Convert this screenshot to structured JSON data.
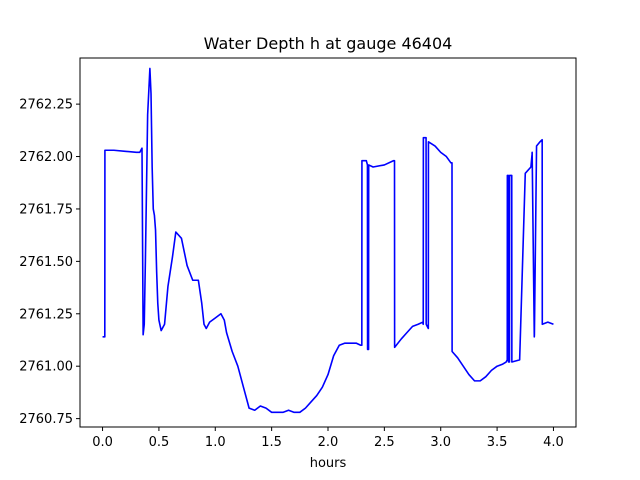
{
  "chart_data": {
    "type": "line",
    "title": "Water Depth h at gauge 46404",
    "xlabel": "hours",
    "ylabel": "",
    "xlim": [
      -0.2,
      4.2
    ],
    "ylim": [
      2760.71,
      2762.47
    ],
    "grid": false,
    "xticks": [
      0.0,
      0.5,
      1.0,
      1.5,
      2.0,
      2.5,
      3.0,
      3.5,
      4.0
    ],
    "xtick_labels": [
      "0.0",
      "0.5",
      "1.0",
      "1.5",
      "2.0",
      "2.5",
      "3.0",
      "3.5",
      "4.0"
    ],
    "yticks": [
      2760.75,
      2761.0,
      2761.25,
      2761.5,
      2761.75,
      2762.0,
      2762.25
    ],
    "ytick_labels": [
      "2760.75",
      "2761.00",
      "2761.25",
      "2761.50",
      "2761.75",
      "2762.00",
      "2762.25"
    ],
    "series": [
      {
        "color": "#0000ff",
        "x": [
          0.0,
          0.02,
          0.021,
          0.1,
          0.2,
          0.3,
          0.33,
          0.35,
          0.36,
          0.37,
          0.38,
          0.4,
          0.42,
          0.43,
          0.44,
          0.45,
          0.46,
          0.47,
          0.48,
          0.49,
          0.5,
          0.52,
          0.55,
          0.58,
          0.6,
          0.62,
          0.65,
          0.7,
          0.75,
          0.8,
          0.85,
          0.88,
          0.9,
          0.92,
          0.95,
          1.0,
          1.05,
          1.08,
          1.1,
          1.15,
          1.2,
          1.25,
          1.3,
          1.35,
          1.4,
          1.45,
          1.5,
          1.55,
          1.6,
          1.65,
          1.7,
          1.75,
          1.8,
          1.85,
          1.9,
          1.95,
          2.0,
          2.05,
          2.1,
          2.15,
          2.2,
          2.25,
          2.29,
          2.3,
          2.301,
          2.34,
          2.35,
          2.351,
          2.36,
          2.361,
          2.4,
          2.5,
          2.58,
          2.59,
          2.591,
          2.65,
          2.7,
          2.75,
          2.8,
          2.84,
          2.845,
          2.846,
          2.87,
          2.871,
          2.88,
          2.89,
          2.891,
          2.95,
          3.0,
          3.05,
          3.09,
          3.1,
          3.101,
          3.15,
          3.2,
          3.25,
          3.3,
          3.35,
          3.4,
          3.45,
          3.5,
          3.55,
          3.58,
          3.59,
          3.591,
          3.6,
          3.601,
          3.61,
          3.611,
          3.63,
          3.631,
          3.7,
          3.75,
          3.8,
          3.81,
          3.811,
          3.83,
          3.831,
          3.85,
          3.88,
          3.9,
          3.901,
          3.95,
          4.0
        ],
        "y": [
          2761.14,
          2761.14,
          2762.03,
          2762.03,
          2762.025,
          2762.02,
          2762.02,
          2762.04,
          2761.15,
          2761.2,
          2761.5,
          2762.2,
          2762.42,
          2762.3,
          2761.95,
          2761.75,
          2761.72,
          2761.65,
          2761.45,
          2761.3,
          2761.22,
          2761.17,
          2761.2,
          2761.38,
          2761.45,
          2761.52,
          2761.64,
          2761.61,
          2761.48,
          2761.41,
          2761.41,
          2761.3,
          2761.2,
          2761.18,
          2761.21,
          2761.23,
          2761.25,
          2761.22,
          2761.16,
          2761.07,
          2761.0,
          2760.9,
          2760.8,
          2760.79,
          2760.81,
          2760.8,
          2760.78,
          2760.78,
          2760.78,
          2760.79,
          2760.78,
          2760.78,
          2760.8,
          2760.83,
          2760.86,
          2760.9,
          2760.96,
          2761.05,
          2761.1,
          2761.11,
          2761.11,
          2761.11,
          2761.1,
          2761.1,
          2761.98,
          2761.98,
          2761.96,
          2761.08,
          2761.08,
          2761.96,
          2761.95,
          2761.96,
          2761.98,
          2761.98,
          2761.09,
          2761.13,
          2761.16,
          2761.19,
          2761.2,
          2761.21,
          2761.2,
          2762.09,
          2762.09,
          2761.2,
          2761.19,
          2761.18,
          2762.07,
          2762.05,
          2762.02,
          2762.0,
          2761.97,
          2761.97,
          2761.07,
          2761.04,
          2761.0,
          2760.96,
          2760.93,
          2760.93,
          2760.95,
          2760.98,
          2761.0,
          2761.01,
          2761.02,
          2761.03,
          2761.91,
          2761.91,
          2761.02,
          2761.02,
          2761.91,
          2761.91,
          2761.02,
          2761.03,
          2761.92,
          2761.95,
          2762.01,
          2762.02,
          2761.14,
          2761.15,
          2762.05,
          2762.07,
          2762.08,
          2761.2,
          2761.21,
          2761.2
        ]
      }
    ]
  }
}
